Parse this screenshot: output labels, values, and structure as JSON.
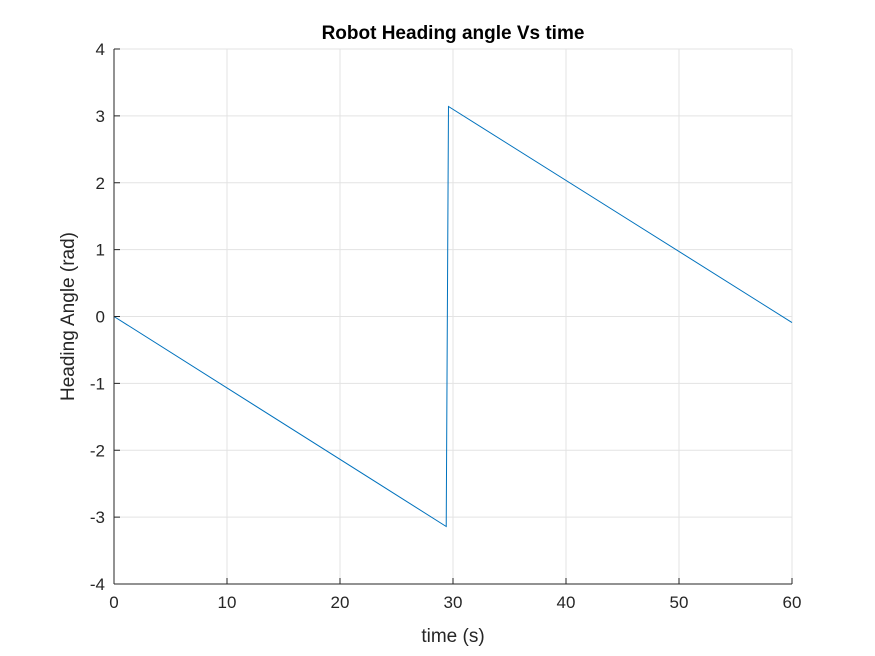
{
  "chart_data": {
    "type": "line",
    "title": "Robot Heading angle Vs time",
    "xlabel": "time (s)",
    "ylabel": "Heading Angle (rad)",
    "xlim": [
      0,
      60
    ],
    "ylim": [
      -4,
      4
    ],
    "xticks": [
      0,
      10,
      20,
      30,
      40,
      50,
      60
    ],
    "yticks": [
      -4,
      -3,
      -2,
      -1,
      0,
      1,
      2,
      3,
      4
    ],
    "xtick_labels": [
      "0",
      "10",
      "20",
      "30",
      "40",
      "50",
      "60"
    ],
    "ytick_labels": [
      "-4",
      "-3",
      "-2",
      "-1",
      "0",
      "1",
      "2",
      "3",
      "4"
    ],
    "grid": true,
    "series": [
      {
        "color": "#0072BD",
        "x": [
          0,
          29.4,
          29.6,
          60
        ],
        "y": [
          0,
          -3.14,
          3.14,
          -0.09
        ]
      }
    ]
  }
}
